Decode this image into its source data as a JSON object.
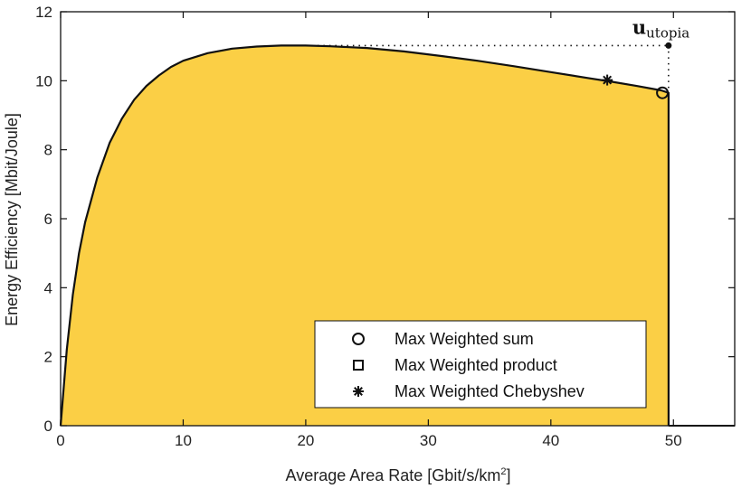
{
  "chart_data": {
    "type": "area",
    "xlabel": "Average Area Rate [Gbit/s/km",
    "xlabel_sup": "2",
    "xlabel_end": "]",
    "ylabel": "Energy Efficiency [Mbit/Joule]",
    "xlim": [
      0,
      55
    ],
    "ylim": [
      0,
      12
    ],
    "xticks": [
      "0",
      "10",
      "20",
      "30",
      "40",
      "50"
    ],
    "yticks": [
      "0",
      "2",
      "4",
      "6",
      "8",
      "10",
      "12"
    ],
    "grid": false,
    "fill_color": "#FBCF45",
    "frontier": {
      "x": [
        0,
        0.5,
        1,
        1.5,
        2,
        3,
        4,
        5,
        6,
        7,
        8,
        9,
        10,
        12,
        14,
        16,
        18,
        20,
        22,
        25,
        28,
        31,
        34,
        37,
        40,
        43,
        45,
        47,
        49,
        49.6,
        49.6
      ],
      "y": [
        0,
        2.2,
        3.8,
        5.0,
        5.9,
        7.2,
        8.2,
        8.9,
        9.45,
        9.85,
        10.15,
        10.4,
        10.58,
        10.8,
        10.93,
        10.99,
        11.02,
        11.02,
        11.0,
        10.95,
        10.85,
        10.72,
        10.58,
        10.42,
        10.25,
        10.08,
        9.97,
        9.85,
        9.72,
        9.65,
        0
      ]
    },
    "baseline": {
      "x": [
        49.6,
        55
      ],
      "y": [
        0,
        0
      ]
    },
    "utopia": {
      "x": 49.6,
      "y": 11.02,
      "label_main": "u",
      "label_sub": "utopia"
    },
    "points": [
      {
        "name": "Max Weighted sum",
        "marker": "circle",
        "x": 49.1,
        "y": 9.65
      },
      {
        "name": "Max Weighted product",
        "marker": "square",
        "x": 49.1,
        "y": 9.65
      },
      {
        "name": "Max Weighted Chebyshev",
        "marker": "asterisk",
        "x": 44.6,
        "y": 10.02
      }
    ],
    "legend": {
      "position": "bottom-right",
      "entries": [
        {
          "label": "Max Weighted sum",
          "marker": "circle"
        },
        {
          "label": "Max Weighted product",
          "marker": "square"
        },
        {
          "label": "Max Weighted Chebyshev",
          "marker": "asterisk"
        }
      ]
    }
  }
}
